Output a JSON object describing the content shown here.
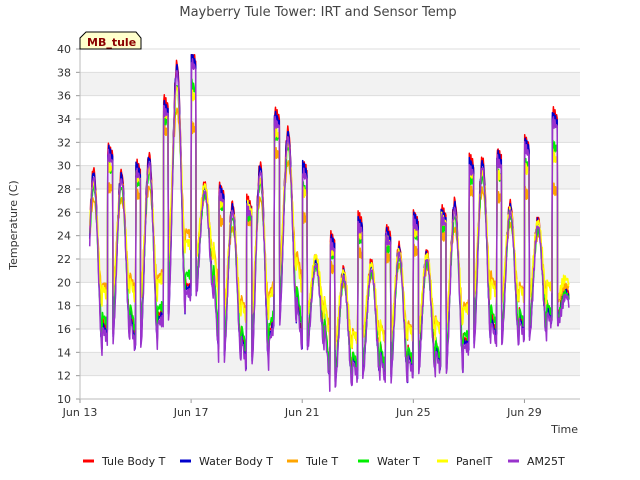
{
  "chart_data": {
    "type": "line",
    "title": "Mayberry Tule Tower: IRT and Sensor Temp",
    "xlabel": "Time",
    "ylabel": "Temperature (C)",
    "ylim": [
      10,
      40
    ],
    "yticks": [
      10,
      12,
      14,
      16,
      18,
      20,
      22,
      24,
      26,
      28,
      30,
      32,
      34,
      36,
      38,
      40
    ],
    "xlim": [
      "Jun 13",
      "Jul 1"
    ],
    "xticks": [
      {
        "label": "Jun 13",
        "day": 13
      },
      {
        "label": "Jun 17",
        "day": 17
      },
      {
        "label": "Jun 21",
        "day": 21
      },
      {
        "label": "Jun 25",
        "day": 25
      },
      {
        "label": "Jun 29",
        "day": 29
      }
    ],
    "grid": true,
    "legend": "bottom",
    "badge": "MB_tule",
    "daily_cycle": [
      {
        "day": 13,
        "min": 14.5,
        "max": 29.7
      },
      {
        "day": 14,
        "min": 15.5,
        "max": 29.5
      },
      {
        "day": 15,
        "min": 14.8,
        "max": 31.0
      },
      {
        "day": 16,
        "min": 17.5,
        "max": 38.8
      },
      {
        "day": 17,
        "min": 19.5,
        "max": 28.5
      },
      {
        "day": 18,
        "min": 13.8,
        "max": 26.8
      },
      {
        "day": 19,
        "min": 13.2,
        "max": 30.2
      },
      {
        "day": 20,
        "min": 17.0,
        "max": 33.1
      },
      {
        "day": 21,
        "min": 14.8,
        "max": 22.2
      },
      {
        "day": 22,
        "min": 11.7,
        "max": 21.2
      },
      {
        "day": 23,
        "min": 12.5,
        "max": 21.8
      },
      {
        "day": 24,
        "min": 12.0,
        "max": 23.2
      },
      {
        "day": 25,
        "min": 12.6,
        "max": 22.7
      },
      {
        "day": 26,
        "min": 12.8,
        "max": 27.0
      },
      {
        "day": 27,
        "min": 15.0,
        "max": 30.6
      },
      {
        "day": 28,
        "min": 15.3,
        "max": 26.8
      },
      {
        "day": 29,
        "min": 15.8,
        "max": 25.5
      },
      {
        "day": 30,
        "min": 17.0,
        "max": 19.5
      }
    ],
    "series": [
      {
        "name": "Tule Body T",
        "color": "#ff0000",
        "mode": "full"
      },
      {
        "name": "Water Body T",
        "color": "#0000cc",
        "mode": "full"
      },
      {
        "name": "Tule T",
        "color": "#ffa500",
        "mode": "damped"
      },
      {
        "name": "Water T",
        "color": "#00ee00",
        "mode": "mid"
      },
      {
        "name": "PanelT",
        "color": "#ffff00",
        "mode": "warm"
      },
      {
        "name": "AM25T",
        "color": "#9933cc",
        "mode": "low"
      }
    ]
  }
}
